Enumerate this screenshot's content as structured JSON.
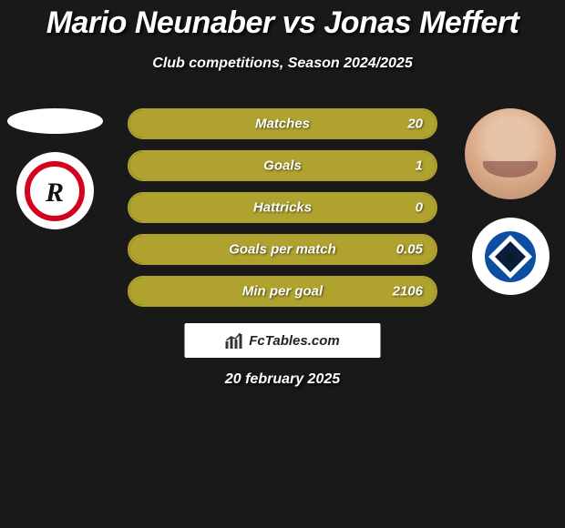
{
  "title": "Mario Neunaber vs Jonas Meffert",
  "subtitle": "Club competitions, Season 2024/2025",
  "date": "20 february 2025",
  "watermark": {
    "text": "FcTables.com"
  },
  "colors": {
    "pill_border": "#b0a22e",
    "pill_fill": "#b0a22e",
    "pill_empty": "#1e1e1e"
  },
  "left_club": {
    "name": "SSV Jahn Regensburg",
    "badge": {
      "outer": "#ffffff",
      "ring": "#d4021d",
      "letter_bg": "#ffffff",
      "letter_fg": "#111111",
      "letter": "R"
    }
  },
  "right_club": {
    "name": "Hamburger SV",
    "badge": {
      "outer": "#ffffff",
      "ring": "#0b4ea2",
      "diamond_outer": "#ffffff",
      "diamond_inner": "#0a1f3d",
      "center": "#0b1a2e"
    }
  },
  "stats": [
    {
      "label": "Matches",
      "value": "20",
      "fill_pct": 100
    },
    {
      "label": "Goals",
      "value": "1",
      "fill_pct": 100
    },
    {
      "label": "Hattricks",
      "value": "0",
      "fill_pct": 100
    },
    {
      "label": "Goals per match",
      "value": "0.05",
      "fill_pct": 100
    },
    {
      "label": "Min per goal",
      "value": "2106",
      "fill_pct": 100
    }
  ]
}
